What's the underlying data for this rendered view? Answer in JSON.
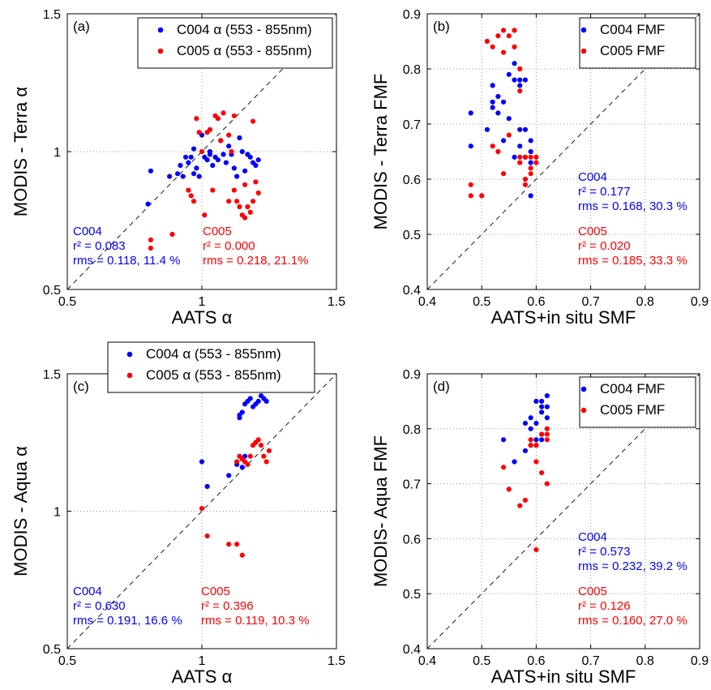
{
  "chart_data": [
    {
      "type": "scatter",
      "panel_label": "(a)",
      "xlabel": "AATS α",
      "ylabel": "MODIS - Terra α",
      "xlim": [
        0.5,
        1.5
      ],
      "ylim": [
        0.5,
        1.5
      ],
      "xticks": [
        "0.5",
        "1",
        "1.5"
      ],
      "yticks": [
        "0.5",
        "1",
        "1.5"
      ],
      "grid": true,
      "one_to_one_line": true,
      "legend": {
        "placement": "top-right",
        "entries": [
          "C004  α (553 - 855nm)",
          "C005  α (553 - 855nm)"
        ]
      },
      "series": [
        {
          "name": "C004  α (553 - 855nm)",
          "color": "#0000ff",
          "points": [
            [
              0.81,
              0.93
            ],
            [
              0.8,
              0.81
            ],
            [
              0.88,
              0.91
            ],
            [
              0.91,
              0.92
            ],
            [
              0.92,
              0.95
            ],
            [
              0.93,
              0.91
            ],
            [
              0.94,
              0.98
            ],
            [
              0.95,
              0.96
            ],
            [
              0.96,
              0.98
            ],
            [
              0.97,
              0.92
            ],
            [
              0.98,
              0.94
            ],
            [
              0.99,
              0.91
            ],
            [
              1.0,
              1.06
            ],
            [
              1.01,
              0.98
            ],
            [
              1.02,
              0.97
            ],
            [
              1.03,
              0.99
            ],
            [
              1.04,
              0.95
            ],
            [
              1.05,
              0.98
            ],
            [
              1.06,
              0.97
            ],
            [
              1.07,
              1.04
            ],
            [
              1.08,
              0.99
            ],
            [
              1.09,
              0.96
            ],
            [
              1.1,
              1.02
            ],
            [
              1.11,
              0.99
            ],
            [
              1.12,
              0.94
            ],
            [
              1.13,
              0.91
            ],
            [
              1.14,
              1.05
            ],
            [
              1.15,
              1.0
            ],
            [
              1.16,
              0.93
            ],
            [
              1.17,
              0.99
            ],
            [
              1.18,
              0.98
            ],
            [
              1.19,
              0.96
            ],
            [
              1.2,
              0.95
            ],
            [
              1.21,
              0.97
            ],
            [
              1.03,
              1.0
            ],
            [
              0.97,
              1.01
            ]
          ]
        },
        {
          "name": "C005  α (553 - 855nm)",
          "color": "#ff0000",
          "points": [
            [
              0.81,
              0.65
            ],
            [
              0.81,
              0.68
            ],
            [
              0.89,
              0.7
            ],
            [
              0.95,
              0.86
            ],
            [
              0.96,
              0.84
            ],
            [
              0.97,
              0.82
            ],
            [
              0.98,
              1.12
            ],
            [
              0.99,
              1.07
            ],
            [
              1.0,
              1.0
            ],
            [
              1.02,
              1.07
            ],
            [
              1.03,
              1.08
            ],
            [
              1.05,
              1.13
            ],
            [
              1.06,
              1.12
            ],
            [
              1.07,
              1.04
            ],
            [
              1.08,
              1.14
            ],
            [
              1.1,
              1.06
            ],
            [
              1.11,
              1.0
            ],
            [
              1.12,
              0.86
            ],
            [
              1.13,
              0.82
            ],
            [
              1.14,
              0.8
            ],
            [
              1.15,
              0.77
            ],
            [
              1.16,
              0.76
            ],
            [
              1.17,
              0.8
            ],
            [
              1.18,
              0.78
            ],
            [
              1.19,
              0.82
            ],
            [
              1.2,
              0.89
            ],
            [
              1.21,
              0.85
            ],
            [
              1.19,
              1.11
            ],
            [
              1.1,
              0.82
            ],
            [
              1.01,
              0.77
            ],
            [
              1.04,
              0.86
            ],
            [
              1.12,
              1.13
            ],
            [
              1.16,
              0.88
            ]
          ]
        }
      ],
      "stats": [
        {
          "label": "C004",
          "r2": "r² = 0.083",
          "rms": "rms = 0.118, 11.4 %"
        },
        {
          "label": "C005",
          "r2": "r² = 0.000",
          "rms": "rms = 0.218, 21.1%"
        }
      ]
    },
    {
      "type": "scatter",
      "panel_label": "(b)",
      "xlabel": "AATS+in situ SMF",
      "ylabel": "MODIS - Terra FMF",
      "xlim": [
        0.4,
        0.9
      ],
      "ylim": [
        0.4,
        0.9
      ],
      "xticks": [
        "0.4",
        "0.5",
        "0.6",
        "0.7",
        "0.8",
        "0.9"
      ],
      "yticks": [
        "0.4",
        "0.5",
        "0.6",
        "0.7",
        "0.8",
        "0.9"
      ],
      "grid": true,
      "one_to_one_line": true,
      "legend": {
        "placement": "top-right",
        "entries": [
          "C004 FMF",
          "C005 FMF"
        ]
      },
      "series": [
        {
          "name": "C004 FMF",
          "color": "#0000ff",
          "points": [
            [
              0.48,
              0.66
            ],
            [
              0.48,
              0.72
            ],
            [
              0.51,
              0.69
            ],
            [
              0.52,
              0.74
            ],
            [
              0.52,
              0.77
            ],
            [
              0.53,
              0.72
            ],
            [
              0.53,
              0.75
            ],
            [
              0.54,
              0.74
            ],
            [
              0.55,
              0.71
            ],
            [
              0.55,
              0.79
            ],
            [
              0.56,
              0.78
            ],
            [
              0.56,
              0.81
            ],
            [
              0.57,
              0.78
            ],
            [
              0.57,
              0.77
            ],
            [
              0.57,
              0.69
            ],
            [
              0.57,
              0.66
            ],
            [
              0.58,
              0.78
            ],
            [
              0.58,
              0.69
            ],
            [
              0.58,
              0.64
            ],
            [
              0.59,
              0.67
            ],
            [
              0.59,
              0.65
            ],
            [
              0.59,
              0.57
            ],
            [
              0.59,
              0.63
            ],
            [
              0.56,
              0.64
            ],
            [
              0.52,
              0.73
            ],
            [
              0.54,
              0.67
            ],
            [
              0.57,
              0.8
            ]
          ]
        },
        {
          "name": "C005 FMF",
          "color": "#ff0000",
          "points": [
            [
              0.48,
              0.57
            ],
            [
              0.48,
              0.59
            ],
            [
              0.5,
              0.57
            ],
            [
              0.51,
              0.85
            ],
            [
              0.52,
              0.84
            ],
            [
              0.52,
              0.66
            ],
            [
              0.53,
              0.65
            ],
            [
              0.53,
              0.86
            ],
            [
              0.54,
              0.87
            ],
            [
              0.54,
              0.83
            ],
            [
              0.54,
              0.61
            ],
            [
              0.55,
              0.86
            ],
            [
              0.56,
              0.87
            ],
            [
              0.56,
              0.84
            ],
            [
              0.57,
              0.8
            ],
            [
              0.57,
              0.76
            ],
            [
              0.57,
              0.64
            ],
            [
              0.58,
              0.59
            ],
            [
              0.58,
              0.6
            ],
            [
              0.58,
              0.64
            ],
            [
              0.59,
              0.64
            ],
            [
              0.59,
              0.62
            ],
            [
              0.59,
              0.61
            ],
            [
              0.6,
              0.63
            ],
            [
              0.6,
              0.64
            ],
            [
              0.55,
              0.68
            ],
            [
              0.57,
              0.63
            ]
          ]
        }
      ],
      "stats": [
        {
          "label": "C004",
          "r2": "r² = 0.177",
          "rms": "rms = 0.168, 30.3 %"
        },
        {
          "label": "C005",
          "r2": "r² = 0.020",
          "rms": "rms = 0.185, 33.3 %"
        }
      ]
    },
    {
      "type": "scatter",
      "panel_label": "(c)",
      "xlabel": "AATS  α",
      "ylabel": "MODIS - Aqua  α",
      "xlim": [
        0.5,
        1.5
      ],
      "ylim": [
        0.5,
        1.5
      ],
      "xticks": [
        "0.5",
        "1",
        "1.5"
      ],
      "yticks": [
        "0.5",
        "1",
        "1.5"
      ],
      "grid": true,
      "one_to_one_line": true,
      "legend": {
        "placement": "top-center",
        "entries": [
          "C004  α (553 - 855nm)",
          "C005  α (553 - 855nm)"
        ]
      },
      "series": [
        {
          "name": "C004  α (553 - 855nm)",
          "color": "#0000ff",
          "points": [
            [
              1.0,
              1.18
            ],
            [
              1.02,
              1.09
            ],
            [
              1.1,
              1.13
            ],
            [
              1.13,
              1.17
            ],
            [
              1.14,
              1.34
            ],
            [
              1.15,
              1.36
            ],
            [
              1.16,
              1.39
            ],
            [
              1.17,
              1.4
            ],
            [
              1.18,
              1.41
            ],
            [
              1.19,
              1.38
            ],
            [
              1.2,
              1.39
            ],
            [
              1.21,
              1.4
            ],
            [
              1.22,
              1.42
            ],
            [
              1.23,
              1.41
            ],
            [
              1.24,
              1.4
            ],
            [
              1.15,
              1.16
            ],
            [
              1.16,
              1.2
            ],
            [
              1.14,
              1.35
            ]
          ]
        },
        {
          "name": "C005  α (553 - 855nm)",
          "color": "#ff0000",
          "points": [
            [
              1.0,
              1.01
            ],
            [
              1.02,
              0.91
            ],
            [
              1.1,
              0.88
            ],
            [
              1.13,
              0.88
            ],
            [
              1.15,
              0.84
            ],
            [
              1.14,
              1.2
            ],
            [
              1.15,
              1.19
            ],
            [
              1.16,
              1.18
            ],
            [
              1.17,
              1.17
            ],
            [
              1.18,
              1.2
            ],
            [
              1.19,
              1.24
            ],
            [
              1.2,
              1.25
            ],
            [
              1.21,
              1.26
            ],
            [
              1.22,
              1.24
            ],
            [
              1.23,
              1.2
            ],
            [
              1.24,
              1.18
            ],
            [
              1.25,
              1.22
            ],
            [
              1.13,
              1.18
            ]
          ]
        }
      ],
      "stats": [
        {
          "label": "C004",
          "r2": "r² = 0.630",
          "rms": "rms = 0.191, 16.6 %"
        },
        {
          "label": "C005",
          "r2": "r² = 0.396",
          "rms": "rms = 0.119, 10.3 %"
        }
      ]
    },
    {
      "type": "scatter",
      "panel_label": "(d)",
      "xlabel": "AATS+in situ SMF",
      "ylabel": "MODIS- Aqua FMF",
      "xlim": [
        0.4,
        0.9
      ],
      "ylim": [
        0.4,
        0.9
      ],
      "xticks": [
        "0.4",
        "0.5",
        "0.6",
        "0.7",
        "0.8",
        "0.9"
      ],
      "yticks": [
        "0.4",
        "0.5",
        "0.6",
        "0.7",
        "0.8",
        "0.9"
      ],
      "grid": true,
      "one_to_one_line": true,
      "legend": {
        "placement": "top-right",
        "entries": [
          "C004 FMF",
          "C005 FMF"
        ]
      },
      "series": [
        {
          "name": "C004 FMF",
          "color": "#0000ff",
          "points": [
            [
              0.54,
              0.78
            ],
            [
              0.56,
              0.74
            ],
            [
              0.58,
              0.76
            ],
            [
              0.59,
              0.8
            ],
            [
              0.59,
              0.82
            ],
            [
              0.6,
              0.85
            ],
            [
              0.6,
              0.81
            ],
            [
              0.61,
              0.83
            ],
            [
              0.61,
              0.85
            ],
            [
              0.61,
              0.84
            ],
            [
              0.62,
              0.86
            ],
            [
              0.62,
              0.84
            ],
            [
              0.62,
              0.82
            ],
            [
              0.6,
              0.78
            ],
            [
              0.59,
              0.77
            ],
            [
              0.61,
              0.78
            ],
            [
              0.58,
              0.81
            ]
          ]
        },
        {
          "name": "C005 FMF",
          "color": "#ff0000",
          "points": [
            [
              0.54,
              0.73
            ],
            [
              0.55,
              0.69
            ],
            [
              0.57,
              0.66
            ],
            [
              0.58,
              0.67
            ],
            [
              0.59,
              0.77
            ],
            [
              0.59,
              0.78
            ],
            [
              0.6,
              0.77
            ],
            [
              0.6,
              0.74
            ],
            [
              0.6,
              0.58
            ],
            [
              0.61,
              0.79
            ],
            [
              0.61,
              0.79
            ],
            [
              0.62,
              0.79
            ],
            [
              0.62,
              0.8
            ],
            [
              0.62,
              0.78
            ],
            [
              0.62,
              0.7
            ],
            [
              0.61,
              0.72
            ],
            [
              0.6,
              0.77
            ]
          ]
        }
      ],
      "stats": [
        {
          "label": "C004",
          "r2": "r² = 0.573",
          "rms": "rms = 0.232, 39.2 %"
        },
        {
          "label": "C005",
          "r2": "r² = 0.126",
          "rms": "rms = 0.160, 27.0 %"
        }
      ]
    }
  ]
}
